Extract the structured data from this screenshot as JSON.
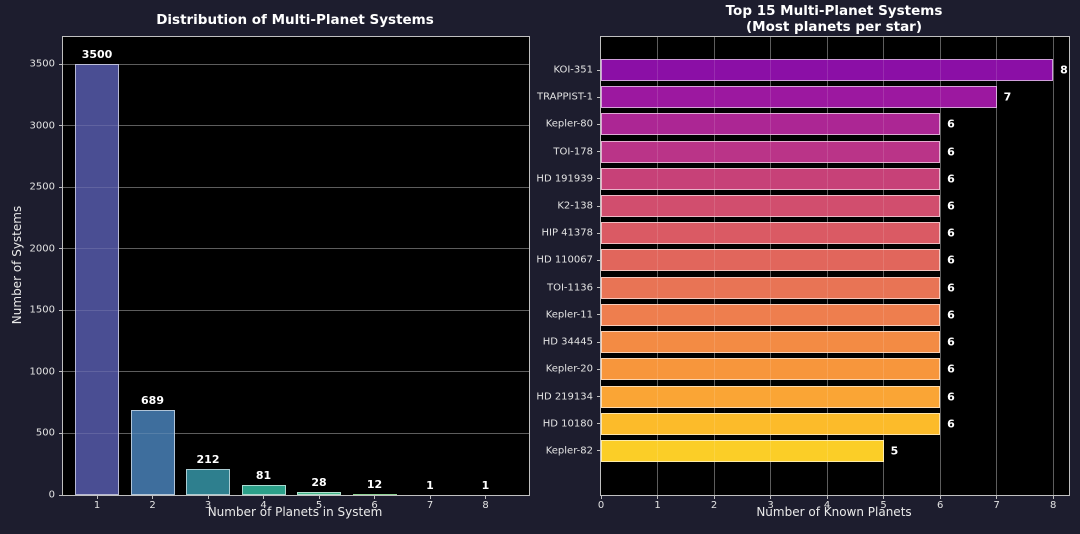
{
  "figure": {
    "background_color": "#1d1d2e",
    "plot_background_color": "#000000",
    "spine_color": "#c0c0c0",
    "text_color": "#eaeaea",
    "title_color": "#ffffff",
    "grid_color": "rgba(255,255,255,0.28)"
  },
  "chart_data": [
    {
      "id": "distribution",
      "type": "bar",
      "title": "Distribution of Multi-Planet Systems",
      "xlabel": "Number of Planets in System",
      "ylabel": "Number of Systems",
      "categories": [
        "1",
        "2",
        "3",
        "4",
        "5",
        "6",
        "7",
        "8"
      ],
      "values": [
        3500,
        689,
        212,
        81,
        28,
        12,
        1,
        1
      ],
      "bar_labels": [
        "3500",
        "689",
        "212",
        "81",
        "28",
        "12",
        "1",
        "1"
      ],
      "bar_colors": [
        "#4a4e93",
        "#3e6e9d",
        "#2e7f8e",
        "#2ca089",
        "#3fb286",
        "#90d295",
        "#c7e67f",
        "#fde725"
      ],
      "yticks": [
        0,
        500,
        1000,
        1500,
        2000,
        2500,
        3000,
        3500
      ],
      "ylim": [
        0,
        3720
      ],
      "grid": "horizontal",
      "legend": "none"
    },
    {
      "id": "top15",
      "type": "bar-horizontal",
      "title": "Top 15 Multi-Planet Systems",
      "subtitle": "(Most planets per star)",
      "xlabel": "Number of Known Planets",
      "categories": [
        "KOI-351",
        "TRAPPIST-1",
        "Kepler-80",
        "TOI-178",
        "HD 191939",
        "K2-138",
        "HIP 41378",
        "HD 110067",
        "TOI-1136",
        "Kepler-11",
        "HD 34445",
        "Kepler-20",
        "HD 219134",
        "HD 10180",
        "Kepler-82"
      ],
      "values": [
        8,
        7,
        6,
        6,
        6,
        6,
        6,
        6,
        6,
        6,
        6,
        6,
        6,
        6,
        5
      ],
      "bar_labels": [
        "8",
        "7",
        "6",
        "6",
        "6",
        "6",
        "6",
        "6",
        "6",
        "6",
        "6",
        "6",
        "6",
        "6",
        "5"
      ],
      "bar_colors": [
        "#8b0fa6",
        "#9c18a0",
        "#ac2694",
        "#ba3488",
        "#c74178",
        "#d14e6e",
        "#da5a64",
        "#e1665c",
        "#e87455",
        "#ee7e4e",
        "#f38b44",
        "#f7963c",
        "#faa535",
        "#fcbb2a",
        "#fbce27"
      ],
      "xticks": [
        0,
        1,
        2,
        3,
        4,
        5,
        6,
        7,
        8
      ],
      "xlim": [
        0,
        8.28
      ],
      "grid": "vertical",
      "legend": "none"
    }
  ]
}
